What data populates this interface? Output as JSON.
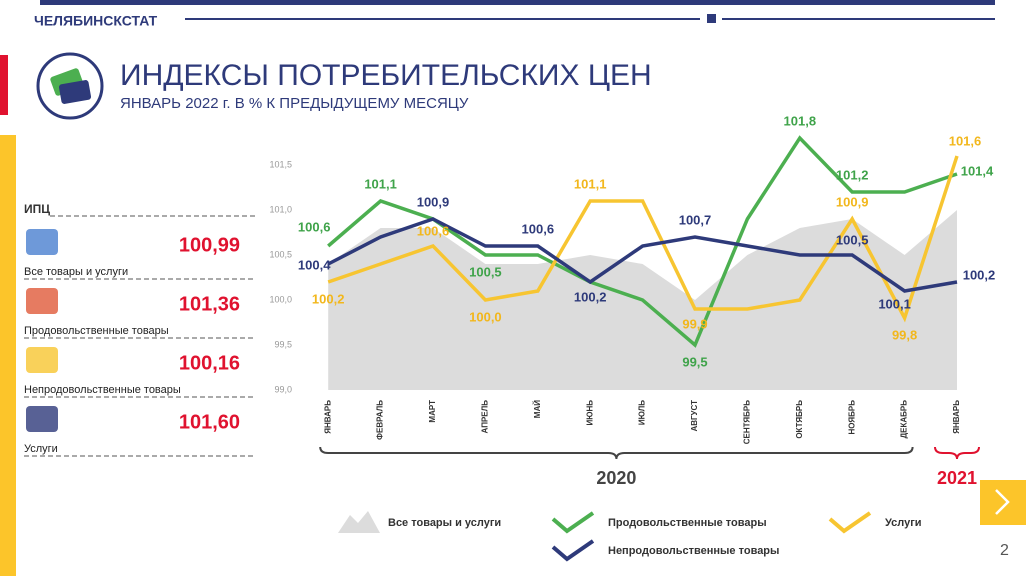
{
  "header": "ЧЕЛЯБИНСКСТАТ",
  "title": "ИНДЕКСЫ ПОТРЕБИТЕЛЬСКИХ ЦЕН",
  "subtitle": "ЯНВАРЬ 2022 г. В % К ПРЕДЫДУЩЕМУ МЕСЯЦУ",
  "summary": {
    "label": "ИПЦ",
    "items": [
      {
        "name": "Все товары и услуги",
        "value": "100,99"
      },
      {
        "name": "Продовольственные товары",
        "value": "101,36"
      },
      {
        "name": "Непродовольственные товары",
        "value": "100,16"
      },
      {
        "name": "Услуги",
        "value": "101,60"
      }
    ]
  },
  "page_number": "2",
  "chart_data": {
    "type": "line",
    "categories": [
      "ЯНВАРЬ",
      "ФЕВРАЛЬ",
      "МАРТ",
      "АПРЕЛЬ",
      "МАЙ",
      "ИЮНЬ",
      "ИЮЛЬ",
      "АВГУСТ",
      "СЕНТЯБРЬ",
      "ОКТЯБРЬ",
      "НОЯБРЬ",
      "ДЕКАБРЬ",
      "ЯНВАРЬ"
    ],
    "groups": [
      "2020",
      "2021"
    ],
    "ylim": [
      99.0,
      101.5
    ],
    "yticks": [
      {
        "value": 99.0,
        "label": "99,0"
      },
      {
        "value": 99.5,
        "label": "99,5"
      },
      {
        "value": 100.0,
        "label": "100,0"
      },
      {
        "value": 100.5,
        "label": "100,5"
      },
      {
        "value": 101.0,
        "label": "101,0"
      },
      {
        "value": 101.5,
        "label": "101,5"
      }
    ],
    "grid": false,
    "series": [
      {
        "name": "Все товары и услуги",
        "kind": "area",
        "color": "#dcdcdc",
        "values": [
          100.4,
          100.8,
          100.8,
          100.4,
          100.4,
          100.5,
          100.4,
          100.0,
          100.5,
          100.8,
          100.9,
          100.5,
          101.0
        ]
      },
      {
        "name": "Продовольственные товары",
        "kind": "line",
        "color": "#4caf50",
        "values": [
          100.6,
          101.1,
          100.9,
          100.5,
          100.5,
          100.2,
          100.0,
          99.5,
          100.9,
          101.8,
          101.2,
          101.2,
          101.4
        ],
        "value_labels": [
          "100,6",
          "101,1",
          null,
          "100,5",
          null,
          null,
          null,
          "99,5",
          null,
          "101,8",
          "101,2",
          null,
          "101,4"
        ]
      },
      {
        "name": "Услуги",
        "kind": "line",
        "color": "#f7c531",
        "values": [
          100.2,
          100.4,
          100.6,
          100.0,
          100.1,
          101.1,
          101.1,
          99.9,
          99.9,
          100.0,
          100.9,
          99.8,
          101.6
        ],
        "value_labels": [
          "100,2",
          null,
          "100,6",
          "100,0",
          null,
          "101,1",
          null,
          "99,9",
          null,
          null,
          "100,9",
          "99,8",
          "101,6"
        ]
      },
      {
        "name": "Непродовольственные товары",
        "kind": "line",
        "color": "#2e3a7a",
        "values": [
          100.4,
          100.7,
          100.9,
          100.6,
          100.6,
          100.2,
          100.6,
          100.7,
          100.6,
          100.5,
          100.5,
          100.1,
          100.2
        ],
        "value_labels": [
          "100,4",
          null,
          "100,9",
          null,
          "100,6",
          "100,2",
          null,
          "100,7",
          null,
          null,
          "100,5",
          "100,1",
          "100,2"
        ]
      }
    ]
  }
}
